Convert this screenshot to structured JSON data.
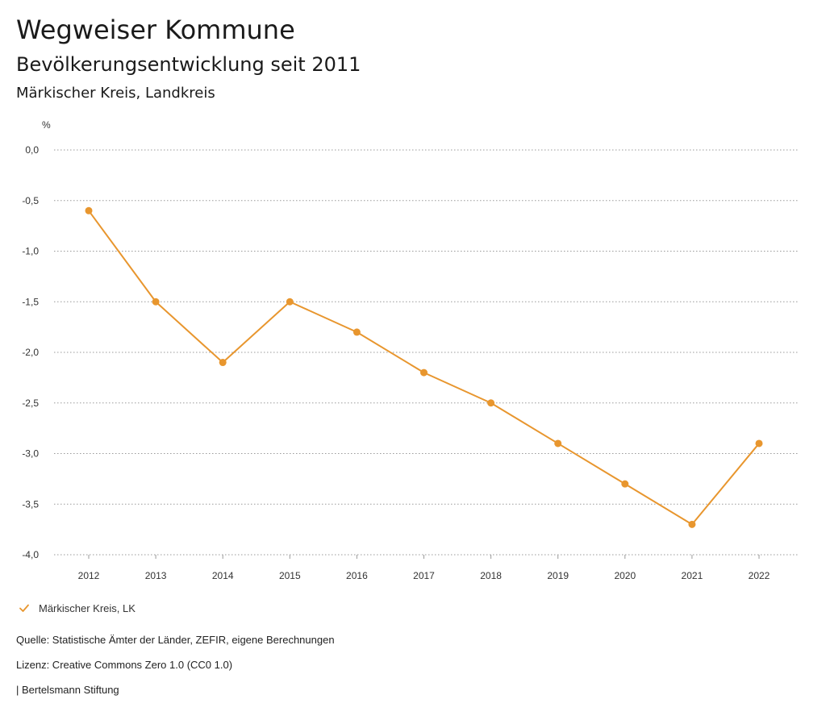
{
  "header": {
    "title": "Wegweiser Kommune",
    "subtitle": "Bevölkerungsentwicklung seit 2011",
    "region": "Märkischer Kreis, Landkreis"
  },
  "chart_data": {
    "type": "line",
    "title": "Bevölkerungsentwicklung seit 2011",
    "ylabel": "%",
    "xlabel": "",
    "x": [
      "2012",
      "2013",
      "2014",
      "2015",
      "2016",
      "2017",
      "2018",
      "2019",
      "2020",
      "2021",
      "2022"
    ],
    "series": [
      {
        "name": "Märkischer Kreis, LK",
        "values": [
          -0.6,
          -1.5,
          -2.1,
          -1.5,
          -1.8,
          -2.2,
          -2.5,
          -2.9,
          -3.3,
          -3.7,
          -2.9
        ],
        "color": "#e8962e"
      }
    ],
    "ylim": [
      -4.0,
      0.0
    ],
    "yticks": [
      0.0,
      -0.5,
      -1.0,
      -1.5,
      -2.0,
      -2.5,
      -3.0,
      -3.5,
      -4.0
    ],
    "ytick_labels": [
      "0,0",
      "-0,5",
      "-1,0",
      "-1,5",
      "-2,0",
      "-2,5",
      "-3,0",
      "-3,5",
      "-4,0"
    ],
    "grid": true,
    "legend": "bottom-left"
  },
  "footer": {
    "source": "Quelle: Statistische Ämter der Länder, ZEFIR, eigene Berechnungen",
    "license": "Lizenz: Creative Commons Zero 1.0 (CC0 1.0)",
    "publisher": "| Bertelsmann Stiftung"
  },
  "legend": {
    "label": "Märkischer Kreis, LK",
    "icon": "check-icon"
  }
}
